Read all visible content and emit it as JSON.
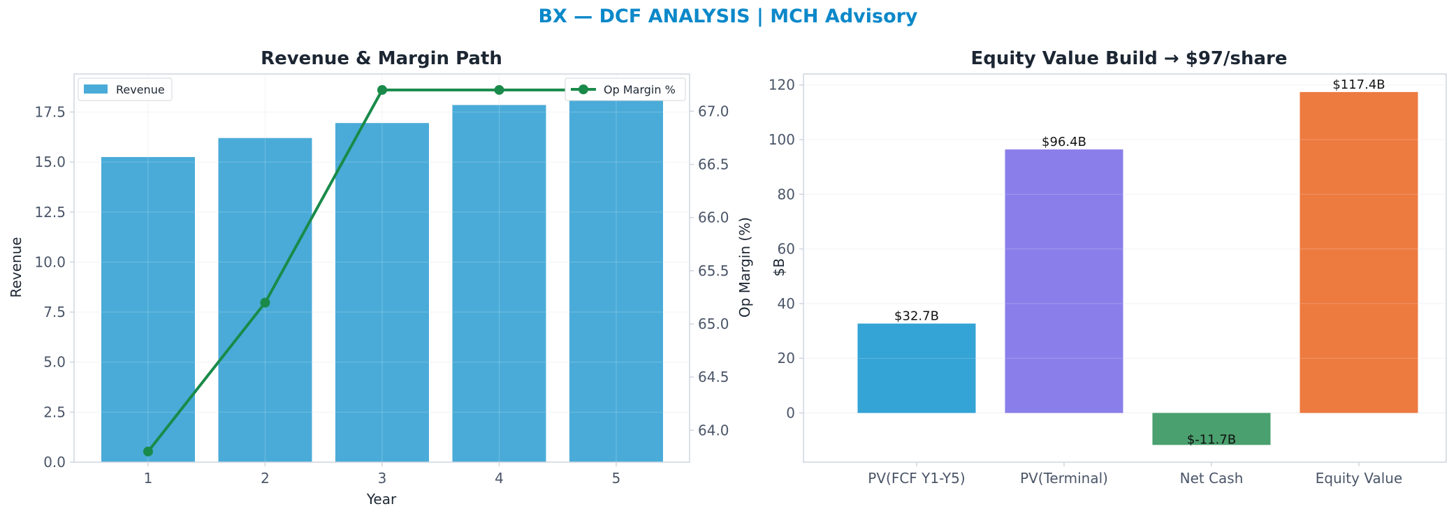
{
  "page_title": "BX — DCF ANALYSIS | MCH Advisory",
  "colors": {
    "title": "#0b88c9",
    "revenue_bar": "#4aabd8",
    "margin_line": "#1a8a4a",
    "axis_text": "#4a5568",
    "heading": "#1c2633",
    "grid": "#eef0f4",
    "spine": "#cfd6df"
  },
  "chart_data": [
    {
      "type": "bar",
      "title": "Revenue & Margin Path",
      "xlabel": "Year",
      "ylabel": "Revenue",
      "y2label": "Op Margin (%)",
      "categories": [
        "1",
        "2",
        "3",
        "4",
        "5"
      ],
      "ylim": [
        0,
        19.4
      ],
      "y2lim": [
        63.7,
        67.35
      ],
      "yticks": [
        0.0,
        2.5,
        5.0,
        7.5,
        10.0,
        12.5,
        15.0,
        17.5
      ],
      "y2ticks": [
        64.0,
        64.5,
        65.0,
        65.5,
        66.0,
        66.5,
        67.0
      ],
      "grid": true,
      "series": [
        {
          "name": "Revenue",
          "type": "bar",
          "axis": "left",
          "values": [
            15.25,
            16.2,
            16.95,
            17.85,
            18.6
          ]
        },
        {
          "name": "Op Margin %",
          "type": "line",
          "axis": "right",
          "values": [
            63.8,
            65.2,
            67.2,
            67.2,
            67.2
          ]
        }
      ],
      "legends": [
        {
          "entry": "Revenue",
          "placement": "upper-left"
        },
        {
          "entry": "Op Margin %",
          "placement": "upper-right"
        }
      ]
    },
    {
      "type": "bar",
      "title": "Equity Value Build → $97/share",
      "xlabel": "",
      "ylabel": "$B",
      "categories": [
        "PV(FCF Y1-Y5)",
        "PV(Terminal)",
        "Net Cash",
        "Equity Value"
      ],
      "values": [
        32.7,
        96.4,
        -11.7,
        117.4
      ],
      "data_labels": [
        "$32.7B",
        "$96.4B",
        "$-11.7B",
        "$117.4B"
      ],
      "bar_colors": [
        "#34a3d5",
        "#8a7eea",
        "#4aa06e",
        "#ed7a3f"
      ],
      "ylim": [
        -18,
        124
      ],
      "yticks": [
        0,
        20,
        40,
        60,
        80,
        100,
        120
      ],
      "grid": true
    }
  ]
}
